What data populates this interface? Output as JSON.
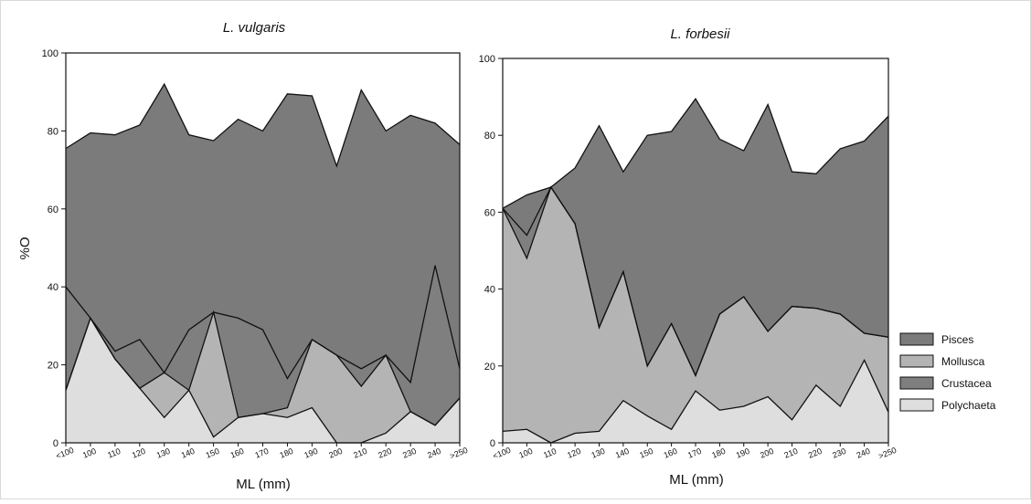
{
  "colors": {
    "pisces": "#7b7b7b",
    "crustacea": "#7f7f7f",
    "mollusca": "#b4b4b4",
    "polychaeta": "#dedede",
    "line": "#111111"
  },
  "legend": {
    "placement": "right",
    "items": [
      {
        "label": "Pisces",
        "color": "#7b7b7b"
      },
      {
        "label": "Mollusca",
        "color": "#b4b4b4"
      },
      {
        "label": "Crustacea",
        "color": "#7f7f7f"
      },
      {
        "label": "Polychaeta",
        "color": "#dedede"
      }
    ]
  },
  "chart_data": [
    {
      "type": "area",
      "stacked": true,
      "title": "L. vulgaris",
      "xlabel": "ML (mm)",
      "ylabel": "%O",
      "ylim": [
        0,
        100
      ],
      "yticks": [
        "0",
        "20",
        "40",
        "60",
        "80",
        "100"
      ],
      "categories": [
        "<100",
        "100",
        "110",
        "120",
        "130",
        "140",
        "150",
        "160",
        "170",
        "180",
        "190",
        "200",
        "210",
        "220",
        "230",
        "240",
        ">250"
      ],
      "series": [
        {
          "name": "Polychaeta",
          "values": [
            13.5,
            32.0,
            21.5,
            14.0,
            6.5,
            13.5,
            1.5,
            6.5,
            7.5,
            6.5,
            9.0,
            0,
            0,
            2.5,
            8.0,
            4.5,
            11.5
          ]
        },
        {
          "name": "Mollusca",
          "values": [
            0,
            0,
            0,
            0,
            11.5,
            0,
            32.0,
            0,
            0,
            2.5,
            17.5,
            22.5,
            14.5,
            20.0,
            0,
            0,
            0
          ]
        },
        {
          "name": "Crustacea",
          "values": [
            26.5,
            0,
            2.0,
            12.5,
            0,
            15.5,
            0,
            25.5,
            21.5,
            7.5,
            0,
            0,
            4.5,
            0,
            7.5,
            41.0,
            7.5
          ]
        },
        {
          "name": "Pisces",
          "values": [
            35.5,
            47.5,
            55.5,
            55.0,
            74.0,
            50.0,
            44.0,
            51.0,
            51.0,
            73.0,
            62.5,
            48.5,
            71.5,
            57.5,
            68.5,
            36.5,
            57.5
          ]
        }
      ]
    },
    {
      "type": "area",
      "stacked": true,
      "title": "L. forbesii",
      "xlabel": "ML (mm)",
      "ylabel": "",
      "ylim": [
        0,
        100
      ],
      "yticks": [
        "0",
        "20",
        "40",
        "60",
        "80",
        "100"
      ],
      "categories": [
        "<100",
        "100",
        "110",
        "120",
        "130",
        "140",
        "150",
        "160",
        "170",
        "180",
        "190",
        "200",
        "210",
        "220",
        "230",
        "240",
        ">250"
      ],
      "series": [
        {
          "name": "Polychaeta",
          "values": [
            3.0,
            3.5,
            0,
            2.5,
            3.0,
            11.0,
            7.0,
            3.5,
            13.5,
            8.5,
            9.5,
            12.0,
            6.0,
            15.0,
            9.5,
            21.5,
            8.0
          ]
        },
        {
          "name": "Mollusca",
          "values": [
            58.0,
            44.5,
            66.5,
            54.5,
            27.0,
            33.5,
            13.0,
            27.5,
            4.0,
            25.0,
            28.5,
            17.0,
            29.5,
            20.0,
            24.0,
            7.0,
            19.5
          ]
        },
        {
          "name": "Crustacea",
          "values": [
            0,
            6.0,
            0,
            0,
            0,
            0,
            0,
            0,
            0,
            0,
            0,
            0,
            0,
            0,
            0,
            0,
            0
          ]
        },
        {
          "name": "Pisces",
          "values": [
            0,
            10.5,
            0,
            14.5,
            52.5,
            26.0,
            60.0,
            50.0,
            72.0,
            45.5,
            38.0,
            59.0,
            35.0,
            35.0,
            43.0,
            50.0,
            57.5
          ]
        }
      ]
    }
  ]
}
